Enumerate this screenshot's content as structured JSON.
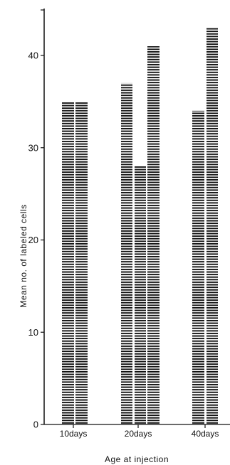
{
  "chart_data": {
    "type": "bar",
    "title": "",
    "xlabel": "Age at injection",
    "ylabel": "Mean no. of labeled cells",
    "categories": [
      "10days",
      "20days",
      "40days"
    ],
    "groups": [
      {
        "category": "10days",
        "values": [
          35,
          35
        ]
      },
      {
        "category": "20days",
        "values": [
          37,
          28,
          41
        ]
      },
      {
        "category": "40days",
        "values": [
          34,
          43
        ]
      }
    ],
    "ylim": [
      0,
      45
    ],
    "yticks": [
      "0",
      "10",
      "20",
      "30",
      "40"
    ],
    "grid": false,
    "legend": "none",
    "bar_pattern": "horizontal-hatch",
    "bar_color": "#111111"
  }
}
